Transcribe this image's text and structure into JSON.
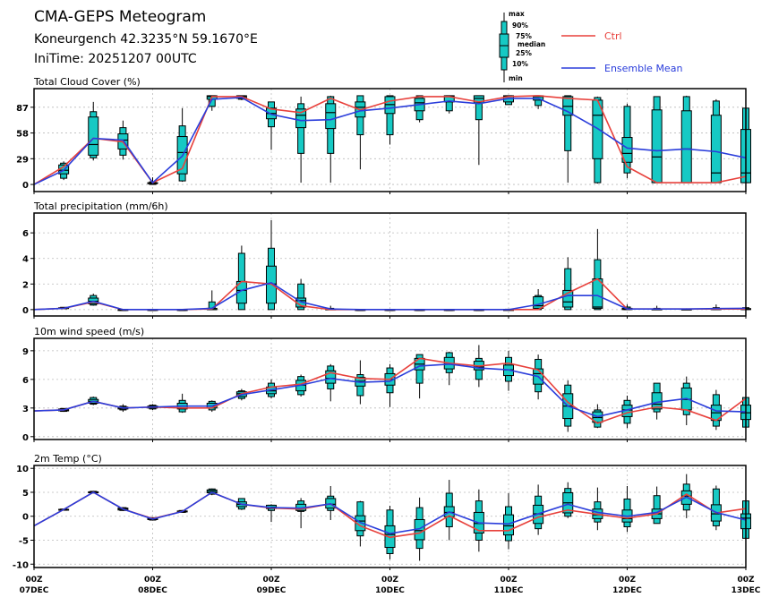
{
  "header": {
    "title": "CMA-GEPS Meteogram",
    "location": "Koneurgench 42.3235°N 59.1670°E",
    "init_time": "IniTime: 20251207 00UTC"
  },
  "legend": {
    "box_labels": [
      "max",
      "90%",
      "75%",
      "median",
      "25%",
      "10%",
      "min"
    ],
    "ctrl_label": "Ctrl",
    "mean_label": "Ensemble Mean"
  },
  "colors": {
    "box": "#16c9c4",
    "ctrl": "#e8413c",
    "mean": "#2a3ddb"
  },
  "chart_data": [
    {
      "type": "boxplot-line",
      "title": "Total Cloud Cover (%)",
      "yticks": [
        0,
        29,
        58,
        87
      ],
      "ylim": [
        -8,
        108
      ],
      "boxes": [
        null,
        [
          5,
          7,
          12,
          16,
          22,
          24,
          26
        ],
        [
          27,
          30,
          33,
          45,
          76,
          82,
          93
        ],
        [
          28,
          33,
          40,
          50,
          57,
          64,
          72
        ],
        [
          0,
          0,
          1,
          1,
          2,
          3,
          8
        ],
        [
          3,
          4,
          12,
          36,
          54,
          66,
          86
        ],
        [
          83,
          88,
          96,
          99,
          100,
          100,
          100
        ],
        [
          95,
          96,
          97,
          99,
          100,
          100,
          100
        ],
        [
          39,
          65,
          74,
          80,
          86,
          93,
          93
        ],
        [
          2,
          35,
          64,
          78,
          85,
          91,
          99
        ],
        [
          2,
          35,
          63,
          81,
          91,
          99,
          100
        ],
        [
          17,
          56,
          76,
          87,
          93,
          100,
          100
        ],
        [
          45,
          56,
          80,
          90,
          99,
          100,
          100
        ],
        [
          70,
          73,
          83,
          92,
          97,
          100,
          100
        ],
        [
          80,
          83,
          93,
          99,
          100,
          100,
          100
        ],
        [
          22,
          73,
          92,
          97,
          100,
          100,
          100
        ],
        [
          90,
          90,
          93,
          99,
          100,
          100,
          100
        ],
        [
          85,
          89,
          95,
          99,
          100,
          100,
          100
        ],
        [
          2,
          38,
          78,
          88,
          99,
          100,
          100
        ],
        [
          1,
          2,
          29,
          78,
          95,
          98,
          99
        ],
        [
          7,
          13,
          25,
          35,
          53,
          88,
          91
        ],
        [
          2,
          2,
          2,
          31,
          84,
          99,
          99
        ],
        [
          2,
          2,
          2,
          40,
          83,
          99,
          100
        ],
        [
          2,
          2,
          2,
          13,
          78,
          94,
          96
        ],
        [
          2,
          2,
          2,
          13,
          62,
          86,
          86
        ]
      ],
      "ctrl": [
        0,
        20,
        52,
        48,
        2,
        18,
        99,
        99,
        85,
        81,
        97,
        84,
        94,
        99,
        99,
        93,
        99,
        100,
        97,
        95,
        20,
        2,
        2,
        2,
        9
      ],
      "mean": [
        0,
        16,
        52,
        50,
        2,
        32,
        96,
        98,
        79,
        72,
        73,
        83,
        86,
        90,
        94,
        91,
        97,
        97,
        82,
        63,
        41,
        38,
        40,
        37,
        30
      ]
    },
    {
      "type": "boxplot-line",
      "title": "Total precipitation (mm/6h)",
      "yticks": [
        0,
        2,
        4,
        6
      ],
      "ylim": [
        -0.5,
        7.55
      ],
      "boxes": [
        null,
        [
          0.05,
          0.07,
          0.08,
          0.1,
          0.15,
          0.18,
          0.2
        ],
        [
          0.3,
          0.35,
          0.45,
          0.65,
          0.9,
          1.1,
          1.25
        ],
        [
          0,
          0,
          0,
          0,
          0,
          0,
          0
        ],
        [
          0,
          0,
          0,
          0,
          0,
          0,
          0
        ],
        [
          0,
          0,
          0,
          0,
          0,
          0,
          0
        ],
        [
          0,
          0,
          0,
          0,
          0.1,
          0.6,
          1.5
        ],
        [
          0,
          0,
          0.5,
          1.5,
          2.2,
          4.4,
          5.0
        ],
        [
          0,
          0,
          0.5,
          2,
          3.4,
          4.8,
          7.0
        ],
        [
          0,
          0,
          0.2,
          0.7,
          0.9,
          2.0,
          2.4
        ],
        [
          0,
          0,
          0,
          0,
          0.05,
          0.1,
          0.3
        ],
        [
          0,
          0,
          0,
          0,
          0,
          0,
          0
        ],
        [
          0,
          0,
          0,
          0,
          0,
          0,
          0
        ],
        [
          0,
          0,
          0,
          0,
          0,
          0,
          0
        ],
        [
          0,
          0,
          0,
          0,
          0,
          0,
          0
        ],
        [
          0,
          0,
          0,
          0,
          0,
          0,
          0
        ],
        [
          0,
          0,
          0,
          0,
          0,
          0.03,
          0.05
        ],
        [
          0,
          0,
          0.1,
          0.3,
          1.0,
          1.1,
          1.6
        ],
        [
          0,
          0,
          0.2,
          0.6,
          1.5,
          3.2,
          4.1
        ],
        [
          0,
          0,
          0.1,
          0.2,
          2.4,
          3.9,
          6.3
        ],
        [
          0,
          0,
          0,
          0.05,
          0.1,
          0.2,
          0.4
        ],
        [
          0,
          0,
          0,
          0.02,
          0.05,
          0.1,
          0.3
        ],
        [
          0,
          0,
          0,
          0.02,
          0.04,
          0.06,
          0.1
        ],
        [
          0,
          0,
          0,
          0.02,
          0.08,
          0.15,
          0.4
        ],
        [
          0,
          0,
          0,
          0.02,
          0.08,
          0.15,
          0.2
        ]
      ],
      "ctrl": [
        0,
        0.1,
        0.6,
        0,
        0,
        0,
        0.05,
        2.2,
        2.0,
        0.3,
        0,
        0,
        0,
        0,
        0,
        0,
        0,
        0,
        1.3,
        2.4,
        0.05,
        0.05,
        0.05,
        0.05,
        0.05
      ],
      "mean": [
        0,
        0.1,
        0.65,
        0,
        0,
        0,
        0.1,
        1.5,
        2.1,
        0.6,
        0.05,
        0,
        0,
        0,
        0,
        0,
        0,
        0.4,
        1.1,
        1.1,
        0.05,
        0.05,
        0.05,
        0.08,
        0.1
      ]
    },
    {
      "type": "boxplot-line",
      "title": "10m wind speed (m/s)",
      "yticks": [
        0,
        3,
        6,
        9
      ],
      "ylim": [
        -0.3,
        10.3
      ],
      "boxes": [
        null,
        [
          2.6,
          2.65,
          2.7,
          2.8,
          2.9,
          2.95,
          3.0
        ],
        [
          3.3,
          3.4,
          3.5,
          3.7,
          3.9,
          4.1,
          4.2
        ],
        [
          2.6,
          2.8,
          2.9,
          3.0,
          3.1,
          3.2,
          3.4
        ],
        [
          2.8,
          2.9,
          3.0,
          3.1,
          3.2,
          3.3,
          3.4
        ],
        [
          2.5,
          2.6,
          2.9,
          3.2,
          3.5,
          3.8,
          4.5
        ],
        [
          2.6,
          2.8,
          3.0,
          3.2,
          3.5,
          3.7,
          3.8
        ],
        [
          3.8,
          4.0,
          4.2,
          4.5,
          4.7,
          4.8,
          5.0
        ],
        [
          4.0,
          4.2,
          4.5,
          4.8,
          5.2,
          5.6,
          6.0
        ],
        [
          4.2,
          4.4,
          4.8,
          5.4,
          5.9,
          6.3,
          6.5
        ],
        [
          3.7,
          5.0,
          5.6,
          6.1,
          6.9,
          7.4,
          7.6
        ],
        [
          3.4,
          4.3,
          5.3,
          5.8,
          6.2,
          6.5,
          8.0
        ],
        [
          3.1,
          4.6,
          5.4,
          6.0,
          6.6,
          7.2,
          7.6
        ],
        [
          4.0,
          5.6,
          7.0,
          7.6,
          8.2,
          8.6,
          8.6
        ],
        [
          5.4,
          6.7,
          7.1,
          7.6,
          8.3,
          8.8,
          8.9
        ],
        [
          5.2,
          6.0,
          7.0,
          7.3,
          7.9,
          8.2,
          9.6
        ],
        [
          4.8,
          5.8,
          6.4,
          7.0,
          7.5,
          8.3,
          9.0
        ],
        [
          3.9,
          4.7,
          5.5,
          6.6,
          7.1,
          8.1,
          8.6
        ],
        [
          0.5,
          1.1,
          1.9,
          3.2,
          4.5,
          5.4,
          5.9
        ],
        [
          0.9,
          1.0,
          1.5,
          2.0,
          2.6,
          2.8,
          3.4
        ],
        [
          0.9,
          1.4,
          2.1,
          2.8,
          3.3,
          3.8,
          4.3
        ],
        [
          1.8,
          2.6,
          2.9,
          3.4,
          4.6,
          5.6,
          5.6
        ],
        [
          1.2,
          2.3,
          2.8,
          3.9,
          5.1,
          5.6,
          6.3
        ],
        [
          0.7,
          1.1,
          1.7,
          2.5,
          3.3,
          4.4,
          4.9
        ],
        [
          1.0,
          1.0,
          1.8,
          2.5,
          3.3,
          4.1,
          4.1
        ]
      ],
      "ctrl": [
        2.7,
        2.8,
        3.7,
        3.0,
        3.1,
        3.0,
        3.0,
        4.5,
        5.2,
        5.5,
        6.7,
        6.1,
        6.0,
        8.2,
        7.7,
        7.4,
        7.7,
        7.0,
        3.6,
        1.4,
        2.5,
        3.1,
        2.8,
        1.7,
        4.0
      ],
      "mean": [
        2.7,
        2.8,
        3.7,
        3.0,
        3.1,
        3.2,
        3.2,
        4.4,
        4.9,
        5.4,
        6.1,
        5.7,
        5.8,
        7.4,
        7.6,
        7.2,
        7.0,
        6.3,
        3.2,
        2.1,
        2.8,
        3.6,
        4.0,
        2.7,
        2.6
      ]
    },
    {
      "type": "boxplot-line",
      "title": "2m Temp (°C)",
      "yticks": [
        -10,
        -5,
        0,
        5,
        10
      ],
      "ylim": [
        -10.7,
        10.6
      ],
      "boxes": [
        null,
        [
          1.2,
          1.25,
          1.3,
          1.4,
          1.45,
          1.5,
          1.5
        ],
        [
          4.8,
          4.85,
          4.9,
          5.0,
          5.1,
          5.2,
          5.3
        ],
        [
          1.1,
          1.2,
          1.3,
          1.5,
          1.7,
          1.8,
          1.9
        ],
        [
          -0.9,
          -0.8,
          -0.7,
          -0.6,
          -0.4,
          -0.3,
          -0.2
        ],
        [
          0.7,
          0.8,
          0.9,
          1.0,
          1.1,
          1.2,
          1.3
        ],
        [
          4.4,
          4.6,
          4.9,
          5.2,
          5.5,
          5.7,
          5.8
        ],
        [
          1.3,
          1.5,
          2.0,
          2.5,
          3.0,
          3.7,
          3.7
        ],
        [
          -1.2,
          1.2,
          1.6,
          1.9,
          2.3,
          2.3,
          2.5
        ],
        [
          -2.5,
          1.0,
          1.2,
          1.7,
          2.5,
          3.2,
          3.8
        ],
        [
          -0.8,
          1.2,
          1.7,
          2.5,
          3.7,
          4.2,
          6.3
        ],
        [
          -6.3,
          -4.1,
          -3.0,
          -1.0,
          0.1,
          3.0,
          3.2
        ],
        [
          -9.0,
          -7.8,
          -6.5,
          -3.8,
          -2.0,
          1.3,
          2.2
        ],
        [
          -9.3,
          -6.7,
          -4.9,
          -3.0,
          -0.7,
          1.8,
          3.9
        ],
        [
          -5.0,
          -2.2,
          -0.1,
          0.8,
          2.0,
          4.8,
          7.6
        ],
        [
          -7.4,
          -5.0,
          -3.5,
          -1.5,
          0.8,
          3.2,
          5.6
        ],
        [
          -6.9,
          -5.1,
          -3.9,
          -2.0,
          0.3,
          2.0,
          4.8
        ],
        [
          -3.9,
          -2.6,
          -1.5,
          0.5,
          2.3,
          4.2,
          6.6
        ],
        [
          -0.4,
          0,
          0.7,
          2.8,
          4.9,
          5.8,
          7.1
        ],
        [
          -2.9,
          -1.2,
          -0.5,
          0.3,
          1.5,
          3.0,
          6.0
        ],
        [
          -3.3,
          -2.2,
          -1.2,
          -0.5,
          1.3,
          3.6,
          6.3
        ],
        [
          -1.5,
          -1.5,
          -0.5,
          0.5,
          1.5,
          4.3,
          6.2
        ],
        [
          -0.4,
          1.3,
          2.5,
          4.2,
          5.3,
          6.7,
          8.8
        ],
        [
          -2.9,
          -2.0,
          -1.0,
          0.5,
          2.4,
          5.7,
          6.4
        ],
        [
          -4.6,
          -4.6,
          -2.6,
          -0.4,
          0.5,
          3.2,
          3.2
        ]
      ],
      "ctrl": [
        -2.0,
        1.4,
        5.0,
        1.5,
        -0.5,
        1.0,
        5.0,
        2.5,
        1.7,
        1.5,
        2.6,
        -2.0,
        -4.4,
        -3.5,
        0.1,
        -3.0,
        -3.0,
        -0.2,
        1.3,
        0.4,
        -0.4,
        0.5,
        4.6,
        0.7,
        1.6
      ],
      "mean": [
        -2.0,
        1.4,
        5.0,
        1.5,
        -0.6,
        1.0,
        5.0,
        2.5,
        1.8,
        1.7,
        2.6,
        -1.3,
        -3.6,
        -2.6,
        0.9,
        -1.4,
        -1.6,
        0.5,
        2.5,
        0.8,
        0,
        0.8,
        4.0,
        0.8,
        -0.8
      ]
    }
  ],
  "xaxis": {
    "labels": [
      [
        "00Z",
        "07DEC"
      ],
      [
        "00Z",
        "08DEC"
      ],
      [
        "00Z",
        "09DEC"
      ],
      [
        "00Z",
        "10DEC"
      ],
      [
        "00Z",
        "11DEC"
      ],
      [
        "00Z",
        "12DEC"
      ],
      [
        "00Z",
        "13DEC"
      ]
    ],
    "steps_per_day": 4
  }
}
